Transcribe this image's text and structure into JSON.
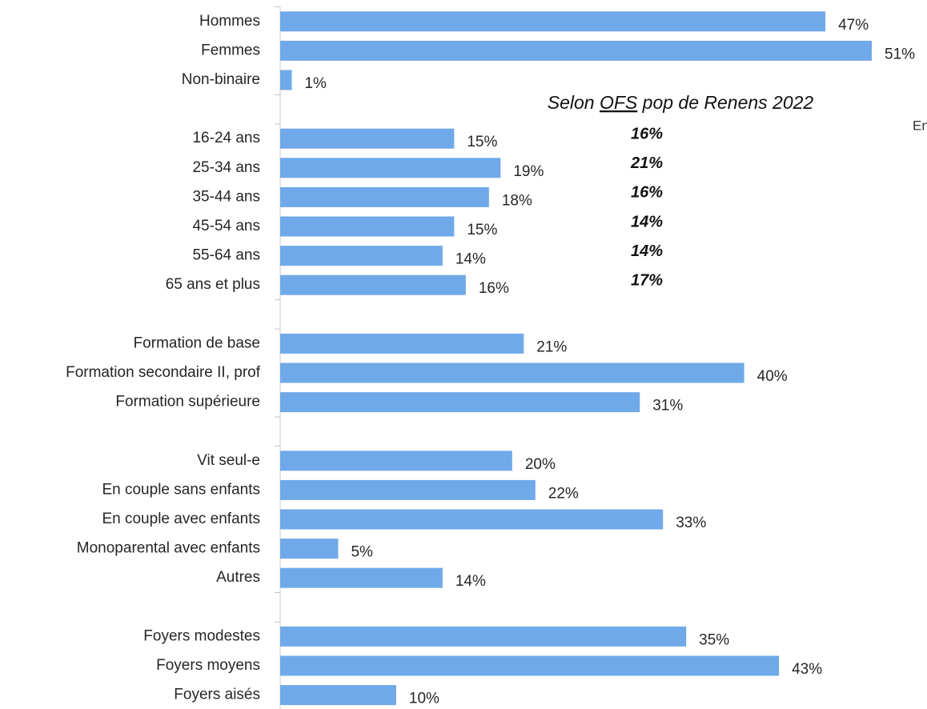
{
  "chart_data": {
    "type": "hbar",
    "categories": [
      "Hommes",
      "Femmes",
      "Non-binaire",
      null,
      "16-24 ans",
      "25-34 ans",
      "35-44 ans",
      "45-54 ans",
      "55-64 ans",
      "65 ans et plus",
      null,
      "Formation de base",
      "Formation secondaire II, prof",
      "Formation supérieure",
      null,
      "Vit seul-e",
      "En couple sans enfants",
      "En couple avec enfants",
      "Monoparental avec enfants",
      "Autres",
      null,
      "Foyers modestes",
      "Foyers moyens",
      "Foyers aisés"
    ],
    "values": [
      47,
      51,
      1,
      null,
      15,
      19,
      18,
      15,
      14,
      16,
      null,
      21,
      40,
      31,
      null,
      20,
      22,
      33,
      5,
      14,
      null,
      35,
      43,
      10
    ],
    "value_labels": [
      "47%",
      "51%",
      "1%",
      null,
      "15%",
      "19%",
      "18%",
      "15%",
      "14%",
      "16%",
      null,
      "21%",
      "40%",
      "31%",
      null,
      "20%",
      "22%",
      "33%",
      "5%",
      "14%",
      null,
      "35%",
      "43%",
      "10%"
    ],
    "color": "#70a9e9",
    "xlim": [
      0,
      55
    ],
    "ofs_reference": {
      "title": [
        "Selon ",
        "OFS",
        " pop de Renens 2022"
      ],
      "values": [
        16,
        21,
        16,
        14,
        14,
        17
      ],
      "value_labels": [
        "16%",
        "21%",
        "16%",
        "14%",
        "14%",
        "17%"
      ]
    },
    "side_note": "En"
  }
}
